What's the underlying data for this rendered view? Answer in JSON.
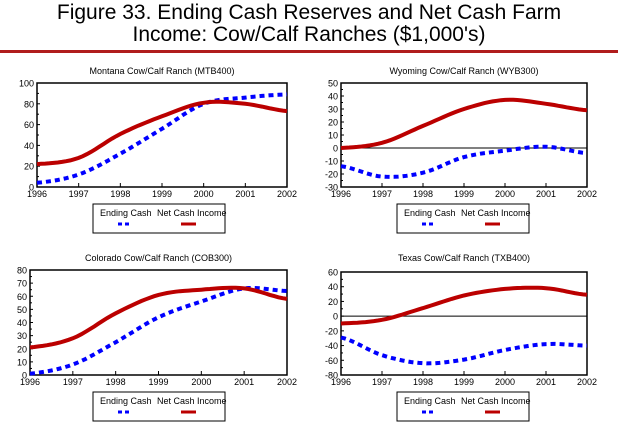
{
  "figure": {
    "title_line1": "Figure 33. Ending Cash Reserves and Net Cash Farm",
    "title_line2": "Income:  Cow/Calf Ranches ($1,000's)",
    "rule_color": "#b01c1c"
  },
  "chart_data": [
    {
      "type": "line",
      "title": "Montana Cow/Calf Ranch (MTB400)",
      "x": [
        1996,
        1997,
        1998,
        1999,
        2000,
        2001,
        2002
      ],
      "ylim": [
        0,
        100
      ],
      "yticks": [
        0,
        20,
        40,
        60,
        80,
        100
      ],
      "zero_line": false,
      "legend": [
        "Ending Cash",
        "Net Cash Income"
      ],
      "series": [
        {
          "name": "Ending Cash",
          "color": "#0000ff",
          "style": "dotted",
          "values": [
            4,
            12,
            32,
            56,
            80,
            86,
            89
          ]
        },
        {
          "name": "Net Cash Income",
          "color": "#bb0000",
          "style": "solid",
          "values": [
            22,
            28,
            51,
            68,
            81,
            80,
            73
          ]
        }
      ]
    },
    {
      "type": "line",
      "title": "Wyoming Cow/Calf Ranch (WYB300)",
      "x": [
        1996,
        1997,
        1998,
        1999,
        2000,
        2001,
        2002
      ],
      "ylim": [
        -30,
        50
      ],
      "yticks": [
        -30,
        -20,
        -10,
        0,
        10,
        20,
        30,
        40,
        50
      ],
      "zero_line": true,
      "legend": [
        "Ending Cash",
        "Net Cash Income"
      ],
      "series": [
        {
          "name": "Ending Cash",
          "color": "#0000ff",
          "style": "dotted",
          "values": [
            -14,
            -22,
            -19,
            -7,
            -2,
            1,
            -4
          ]
        },
        {
          "name": "Net Cash Income",
          "color": "#bb0000",
          "style": "solid",
          "values": [
            0,
            4,
            17,
            30,
            37,
            34,
            29
          ]
        }
      ]
    },
    {
      "type": "line",
      "title": "Colorado Cow/Calf Ranch (COB300)",
      "x": [
        1996,
        1997,
        1998,
        1999,
        2000,
        2001,
        2002
      ],
      "ylim": [
        0,
        80
      ],
      "yticks": [
        0,
        10,
        20,
        30,
        40,
        50,
        60,
        70,
        80
      ],
      "zero_line": false,
      "legend": [
        "Ending Cash",
        "Net Cash Income"
      ],
      "series": [
        {
          "name": "Ending Cash",
          "color": "#0000ff",
          "style": "dotted",
          "values": [
            1,
            8,
            25,
            44,
            56,
            66,
            64
          ]
        },
        {
          "name": "Net Cash Income",
          "color": "#bb0000",
          "style": "solid",
          "values": [
            21,
            28,
            47,
            61,
            65,
            66,
            58
          ]
        }
      ]
    },
    {
      "type": "line",
      "title": "Texas Cow/Calf Ranch (TXB400)",
      "x": [
        1996,
        1997,
        1998,
        1999,
        2000,
        2001,
        2002
      ],
      "ylim": [
        -80,
        60
      ],
      "yticks": [
        -80,
        -60,
        -40,
        -20,
        0,
        20,
        40,
        60
      ],
      "zero_line": true,
      "legend": [
        "Ending Cash",
        "Net Cash Income"
      ],
      "series": [
        {
          "name": "Ending Cash",
          "color": "#0000ff",
          "style": "dotted",
          "values": [
            -29,
            -53,
            -64,
            -59,
            -46,
            -38,
            -40
          ]
        },
        {
          "name": "Net Cash Income",
          "color": "#bb0000",
          "style": "solid",
          "values": [
            -10,
            -5,
            11,
            28,
            37,
            38,
            29
          ]
        }
      ]
    }
  ]
}
